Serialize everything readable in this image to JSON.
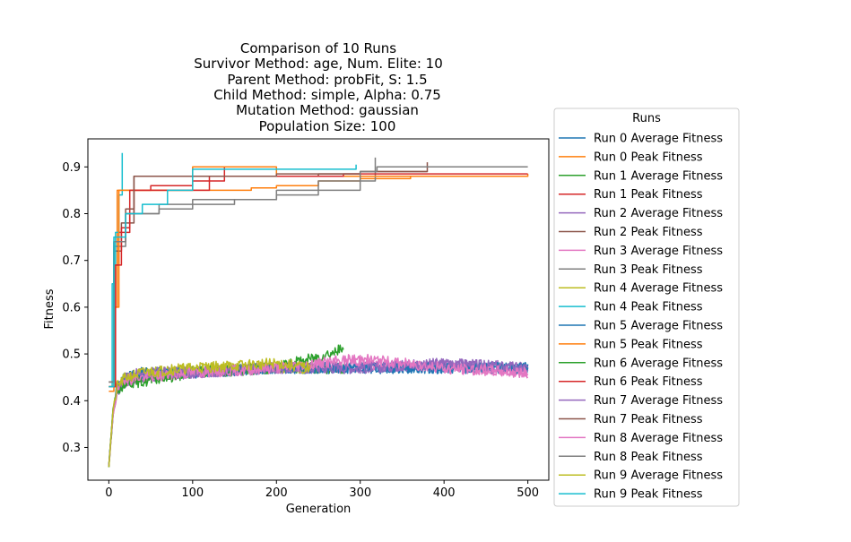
{
  "chart_data": {
    "type": "line",
    "title_lines": [
      "Comparison of 10 Runs",
      "Survivor Method: age, Num. Elite: 10",
      "Parent Method: probFit, S: 1.5",
      "Child Method: simple, Alpha: 0.75",
      "Mutation Method: gaussian",
      "Population Size: 100"
    ],
    "xlabel": "Generation",
    "ylabel": "Fitness",
    "xlim": [
      -25,
      525
    ],
    "ylim": [
      0.23,
      0.96
    ],
    "xticks": [
      0,
      100,
      200,
      300,
      400,
      500
    ],
    "yticks": [
      0.3,
      0.4,
      0.5,
      0.6,
      0.7,
      0.8,
      0.9
    ],
    "ytick_labels": [
      "0.3",
      "0.4",
      "0.5",
      "0.6",
      "0.7",
      "0.8",
      "0.9"
    ],
    "grid": false,
    "legend": {
      "title": "Runs",
      "placement": "outside-right"
    },
    "average_fitness_profile": {
      "start": 0.26,
      "after_generation_10": 0.43,
      "plateau_generations_50_to_500": 0.47,
      "band_low": 0.43,
      "band_high": 0.52
    },
    "series": [
      {
        "name": "Run 0 Average Fitness",
        "color": "#1f77b4",
        "kind": "average",
        "final_gen": 500,
        "x": [
          0,
          5,
          10,
          20,
          40,
          100,
          200,
          300,
          400,
          500
        ],
        "y": [
          0.26,
          0.38,
          0.43,
          0.45,
          0.46,
          0.46,
          0.47,
          0.47,
          0.47,
          0.47
        ]
      },
      {
        "name": "Run 0 Peak Fitness",
        "color": "#ff7f0e",
        "kind": "peak",
        "x": [
          0,
          6,
          10,
          150,
          170,
          200,
          250,
          300,
          360,
          500
        ],
        "y": [
          0.42,
          0.6,
          0.85,
          0.85,
          0.855,
          0.86,
          0.87,
          0.875,
          0.88,
          0.88
        ]
      },
      {
        "name": "Run 1 Average Fitness",
        "color": "#2ca02c",
        "kind": "average",
        "final_gen": 280,
        "x": [
          0,
          5,
          10,
          20,
          40,
          100,
          200,
          280
        ],
        "y": [
          0.26,
          0.38,
          0.43,
          0.44,
          0.45,
          0.46,
          0.47,
          0.47
        ]
      },
      {
        "name": "Run 1 Peak Fitness",
        "color": "#d62728",
        "kind": "peak",
        "x": [
          0,
          8,
          12,
          25,
          30,
          50,
          100,
          138
        ],
        "y": [
          0.43,
          0.69,
          0.76,
          0.8,
          0.85,
          0.86,
          0.87,
          0.9
        ]
      },
      {
        "name": "Run 2 Average Fitness",
        "color": "#9467bd",
        "kind": "average",
        "final_gen": 500,
        "x": [
          0,
          5,
          10,
          20,
          40,
          100,
          200,
          300,
          400,
          500
        ],
        "y": [
          0.26,
          0.37,
          0.42,
          0.44,
          0.45,
          0.46,
          0.47,
          0.47,
          0.48,
          0.47
        ]
      },
      {
        "name": "Run 2 Peak Fitness",
        "color": "#8c564b",
        "kind": "peak",
        "x": [
          0,
          6,
          15,
          30,
          100,
          250,
          300,
          380
        ],
        "y": [
          0.44,
          0.72,
          0.78,
          0.88,
          0.88,
          0.885,
          0.89,
          0.91
        ]
      },
      {
        "name": "Run 3 Average Fitness",
        "color": "#e377c2",
        "kind": "average",
        "final_gen": 500,
        "x": [
          0,
          5,
          10,
          20,
          40,
          100,
          200,
          300,
          400,
          500
        ],
        "y": [
          0.26,
          0.37,
          0.42,
          0.44,
          0.45,
          0.46,
          0.47,
          0.48,
          0.47,
          0.46
        ]
      },
      {
        "name": "Run 3 Peak Fitness",
        "color": "#7f7f7f",
        "kind": "peak",
        "x": [
          0,
          6,
          20,
          60,
          100,
          150,
          200,
          250,
          318
        ],
        "y": [
          0.44,
          0.73,
          0.8,
          0.81,
          0.82,
          0.83,
          0.84,
          0.87,
          0.92
        ]
      },
      {
        "name": "Run 4 Average Fitness",
        "color": "#bcbd22",
        "kind": "average",
        "final_gen": 240,
        "x": [
          0,
          5,
          10,
          20,
          40,
          100,
          200,
          240
        ],
        "y": [
          0.26,
          0.38,
          0.43,
          0.45,
          0.46,
          0.47,
          0.47,
          0.47
        ]
      },
      {
        "name": "Run 4 Peak Fitness",
        "color": "#17becf",
        "kind": "peak",
        "x": [
          0,
          4,
          8,
          12,
          16
        ],
        "y": [
          0.43,
          0.65,
          0.76,
          0.84,
          0.93
        ]
      },
      {
        "name": "Run 5 Average Fitness",
        "color": "#1f77b4",
        "kind": "average",
        "final_gen": 500,
        "x": [
          0,
          5,
          10,
          20,
          40,
          100,
          200,
          300,
          400,
          500
        ],
        "y": [
          0.26,
          0.38,
          0.43,
          0.45,
          0.46,
          0.46,
          0.47,
          0.47,
          0.47,
          0.47
        ]
      },
      {
        "name": "Run 5 Peak Fitness",
        "color": "#ff7f0e",
        "kind": "peak",
        "x": [
          0,
          6,
          12,
          40,
          100,
          200,
          300,
          500
        ],
        "y": [
          0.43,
          0.6,
          0.85,
          0.85,
          0.9,
          0.88,
          0.88,
          0.885
        ]
      },
      {
        "name": "Run 6 Average Fitness",
        "color": "#2ca02c",
        "kind": "average",
        "final_gen": 280,
        "x": [
          0,
          5,
          10,
          20,
          40,
          100,
          200,
          280
        ],
        "y": [
          0.26,
          0.37,
          0.42,
          0.44,
          0.44,
          0.46,
          0.47,
          0.51
        ]
      },
      {
        "name": "Run 6 Peak Fitness",
        "color": "#d62728",
        "kind": "peak",
        "x": [
          0,
          8,
          15,
          25,
          50,
          120,
          280,
          500
        ],
        "y": [
          0.43,
          0.69,
          0.77,
          0.85,
          0.85,
          0.88,
          0.885,
          0.885
        ]
      },
      {
        "name": "Run 7 Average Fitness",
        "color": "#9467bd",
        "kind": "average",
        "final_gen": 500,
        "x": [
          0,
          5,
          10,
          20,
          40,
          100,
          200,
          300,
          400,
          500
        ],
        "y": [
          0.26,
          0.37,
          0.43,
          0.45,
          0.46,
          0.46,
          0.47,
          0.47,
          0.48,
          0.47
        ]
      },
      {
        "name": "Run 7 Peak Fitness",
        "color": "#8c564b",
        "kind": "peak",
        "x": [
          0,
          6,
          20,
          30,
          100,
          200,
          300,
          380
        ],
        "y": [
          0.44,
          0.74,
          0.81,
          0.88,
          0.88,
          0.885,
          0.89,
          0.89
        ]
      },
      {
        "name": "Run 8 Average Fitness",
        "color": "#e377c2",
        "kind": "average",
        "final_gen": 500,
        "x": [
          0,
          5,
          10,
          20,
          40,
          100,
          200,
          300,
          400,
          500
        ],
        "y": [
          0.26,
          0.37,
          0.42,
          0.45,
          0.45,
          0.46,
          0.47,
          0.49,
          0.47,
          0.46
        ]
      },
      {
        "name": "Run 8 Peak Fitness",
        "color": "#7f7f7f",
        "kind": "peak",
        "x": [
          0,
          6,
          20,
          60,
          100,
          200,
          300,
          320,
          500
        ],
        "y": [
          0.44,
          0.74,
          0.8,
          0.82,
          0.83,
          0.85,
          0.89,
          0.9,
          0.9
        ]
      },
      {
        "name": "Run 9 Average Fitness",
        "color": "#bcbd22",
        "kind": "average",
        "final_gen": 240,
        "x": [
          0,
          5,
          10,
          20,
          40,
          100,
          200,
          240
        ],
        "y": [
          0.26,
          0.38,
          0.43,
          0.45,
          0.46,
          0.47,
          0.48,
          0.47
        ]
      },
      {
        "name": "Run 9 Peak Fitness",
        "color": "#17becf",
        "kind": "peak",
        "x": [
          0,
          6,
          20,
          40,
          70,
          100,
          200,
          295
        ],
        "y": [
          0.43,
          0.75,
          0.8,
          0.82,
          0.85,
          0.895,
          0.895,
          0.905
        ]
      }
    ]
  }
}
